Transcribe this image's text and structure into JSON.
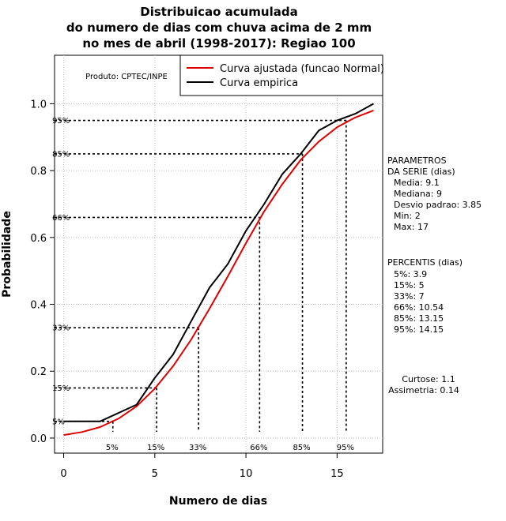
{
  "chart_data": {
    "type": "line",
    "title": [
      "Distribuicao acumulada",
      "do numero de dias com chuva acima de 2 mm",
      "no mes de abril (1998-2017): Regiao 100"
    ],
    "xlabel": "Numero de dias",
    "ylabel": "Probabilidade",
    "xlim": [
      -0.5,
      17.5
    ],
    "ylim": [
      -0.045,
      1.145
    ],
    "x_ticks": [
      0,
      5,
      10,
      15
    ],
    "y_ticks": [
      0.0,
      0.2,
      0.4,
      0.6,
      0.8,
      1.0
    ],
    "y_tick_labels": [
      "0.0",
      "0.2",
      "0.4",
      "0.6",
      "0.8",
      "1.0"
    ],
    "grid": true,
    "credit": "Produto: CPTEC/INPE",
    "normal_params": {
      "mean": 9.1,
      "sd": 3.85
    },
    "series": [
      {
        "name": "Curva ajustada (funcao Normal)",
        "color": "#e00000",
        "x": [
          0,
          1,
          2,
          3,
          4,
          5,
          6,
          7,
          8,
          9,
          10,
          11,
          12,
          13,
          14,
          15,
          16,
          17
        ],
        "values": [
          0.009,
          0.018,
          0.033,
          0.058,
          0.095,
          0.148,
          0.215,
          0.295,
          0.387,
          0.483,
          0.583,
          0.678,
          0.76,
          0.832,
          0.887,
          0.93,
          0.959,
          0.98
        ]
      },
      {
        "name": "Curva empirica",
        "color": "#000000",
        "x": [
          0,
          2,
          4,
          5,
          6,
          7,
          8,
          9,
          10,
          11,
          12,
          13,
          14,
          15,
          16,
          17
        ],
        "values": [
          0.05,
          0.05,
          0.1,
          0.18,
          0.25,
          0.35,
          0.45,
          0.52,
          0.62,
          0.7,
          0.79,
          0.85,
          0.92,
          0.95,
          0.97,
          1.0
        ]
      }
    ],
    "percentile_markers": [
      {
        "label": "5%",
        "p": 0.05,
        "x": 2.7
      },
      {
        "label": "15%",
        "p": 0.15,
        "x": 5.1
      },
      {
        "label": "33%",
        "p": 0.33,
        "x": 7.4
      },
      {
        "label": "66%",
        "p": 0.66,
        "x": 10.75
      },
      {
        "label": "85%",
        "p": 0.85,
        "x": 13.1
      },
      {
        "label": "95%",
        "p": 0.95,
        "x": 15.5
      }
    ],
    "parametros": {
      "heading": [
        "PARAMETROS",
        "DA SERIE (dias)"
      ],
      "lines": [
        "Media: 9.1",
        "Mediana: 9",
        "Desvio padrao: 3.85",
        "Min: 2",
        "Max: 17"
      ]
    },
    "percentis": {
      "heading": "PERCENTIS (dias)",
      "lines": [
        "5%: 3.9",
        "15%: 5",
        "33%: 7",
        "66%: 10.54",
        "85%: 13.15",
        "95%: 14.15"
      ]
    },
    "shape": {
      "lines": [
        "Curtose: 1.1",
        "Assimetria: 0.14"
      ]
    }
  }
}
